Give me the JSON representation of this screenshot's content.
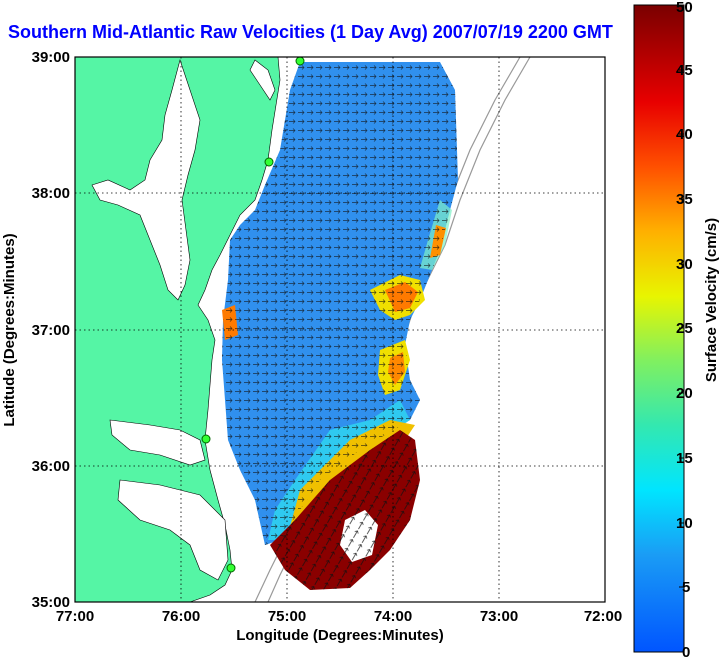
{
  "title": "Southern Mid-Atlantic Raw Velocities (1 Day Avg) 2007/07/19 2200 GMT",
  "axes": {
    "xlabel": "Longitude (Degrees:Minutes)",
    "ylabel": "Latitude (Degrees:Minutes)",
    "xticks": [
      "77:00",
      "76:00",
      "75:00",
      "74:00",
      "73:00",
      "72:00"
    ],
    "yticks": [
      "39:00",
      "38:00",
      "37:00",
      "36:00",
      "35:00"
    ]
  },
  "colorbar": {
    "label": "Surface Velocity (cm/s)",
    "ticks": [
      "0",
      "5",
      "10",
      "15",
      "20",
      "25",
      "30",
      "35",
      "40",
      "45",
      "50"
    ],
    "range": [
      0,
      50
    ]
  },
  "colors": {
    "land": "#55f5a5",
    "title": "#0000ff",
    "slow": "#2a7df5",
    "fast": "#7a0000"
  }
}
